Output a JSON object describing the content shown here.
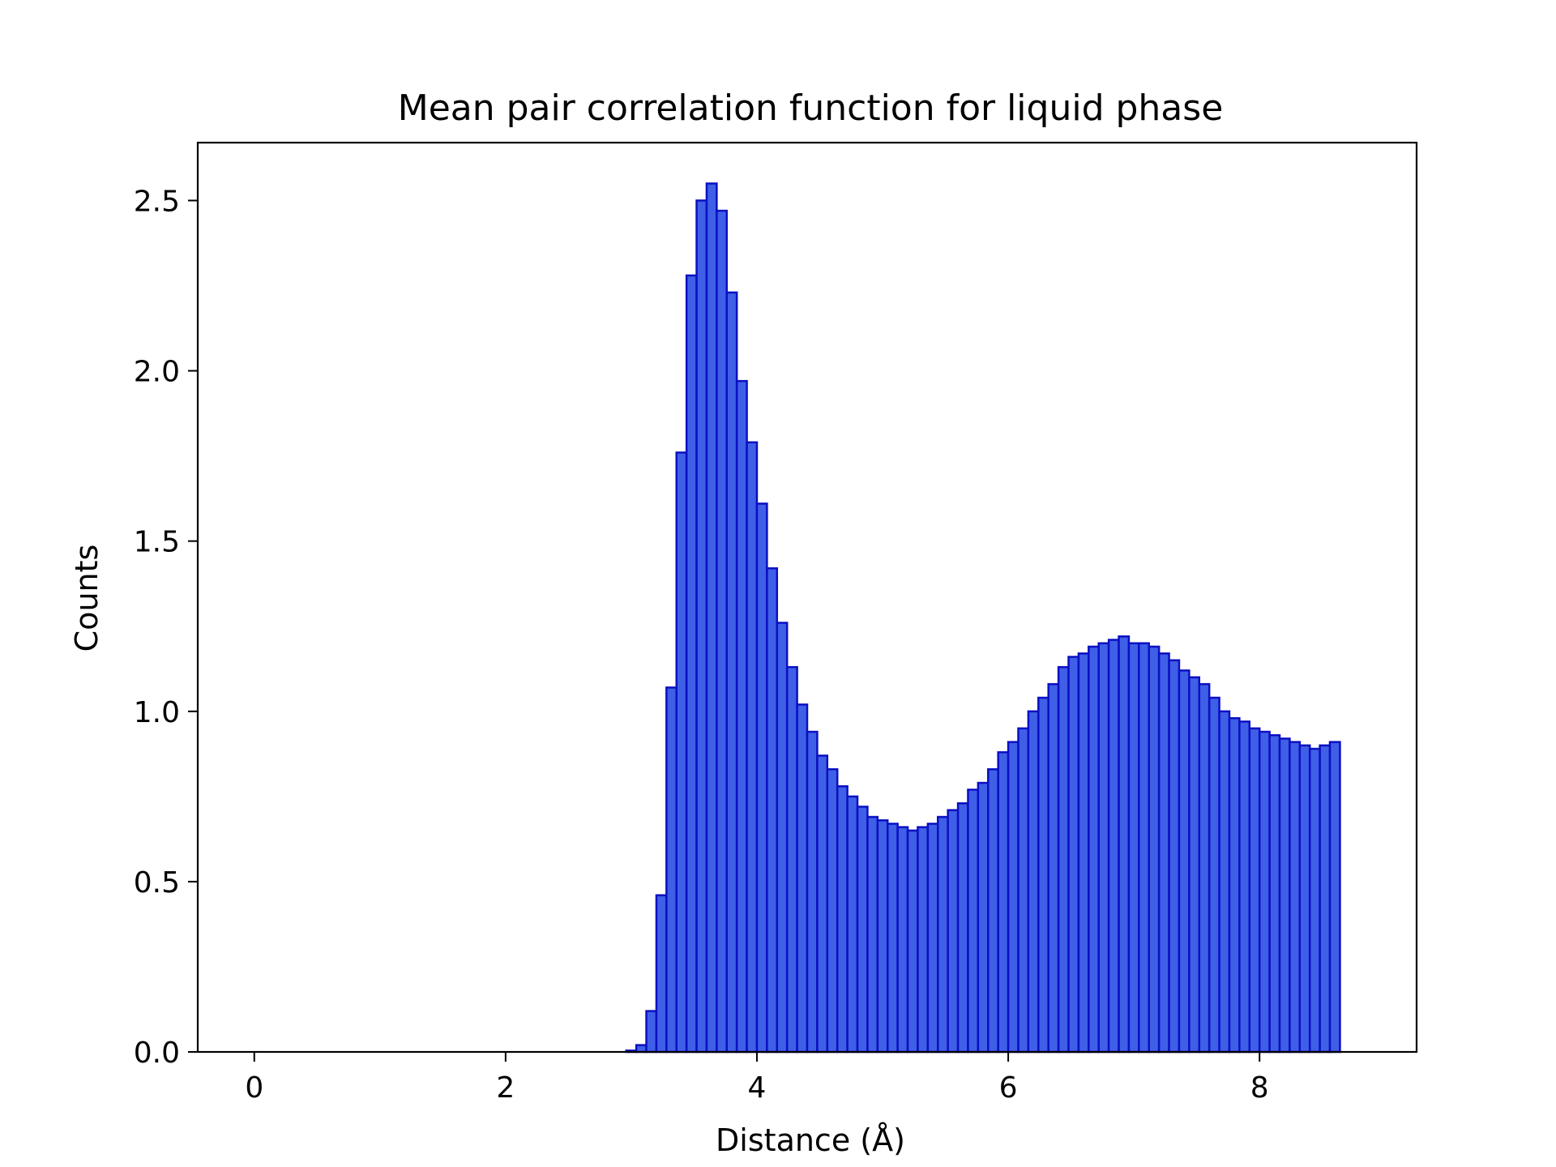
{
  "chart_data": {
    "type": "bar",
    "title": "Mean pair correlation function for liquid phase",
    "xlabel": "Distance (Å)",
    "ylabel": "Counts",
    "xlim": [
      -0.45,
      9.25
    ],
    "ylim": [
      0,
      2.67
    ],
    "xticks": [
      0,
      2,
      4,
      6,
      8
    ],
    "xtick_labels": [
      "0",
      "2",
      "4",
      "6",
      "8"
    ],
    "yticks": [
      0.0,
      0.5,
      1.0,
      1.5,
      2.0,
      2.5
    ],
    "ytick_labels": [
      "0.0",
      "0.5",
      "1.0",
      "1.5",
      "2.0",
      "2.5"
    ],
    "grid": false,
    "legend": "none",
    "bin_start": 0.0,
    "bin_width": 0.08,
    "bin_count": 110,
    "nonzero_bins_start_index": 37,
    "values": [
      0.004,
      0.02,
      0.12,
      0.46,
      1.07,
      1.76,
      2.28,
      2.5,
      2.55,
      2.47,
      2.23,
      1.97,
      1.79,
      1.61,
      1.42,
      1.26,
      1.13,
      1.02,
      0.94,
      0.87,
      0.83,
      0.78,
      0.75,
      0.72,
      0.69,
      0.68,
      0.67,
      0.66,
      0.65,
      0.66,
      0.67,
      0.69,
      0.71,
      0.73,
      0.77,
      0.79,
      0.83,
      0.88,
      0.91,
      0.95,
      1.0,
      1.04,
      1.08,
      1.13,
      1.16,
      1.17,
      1.19,
      1.2,
      1.21,
      1.22,
      1.2,
      1.2,
      1.19,
      1.17,
      1.15,
      1.12,
      1.1,
      1.08,
      1.04,
      1.0,
      0.98,
      0.97,
      0.95,
      0.94,
      0.93,
      0.92,
      0.91,
      0.9,
      0.89,
      0.9,
      0.91
    ],
    "colors": {
      "fill": "#3f5fe6",
      "edge": "#0b10c2",
      "axes": "#000000"
    }
  }
}
